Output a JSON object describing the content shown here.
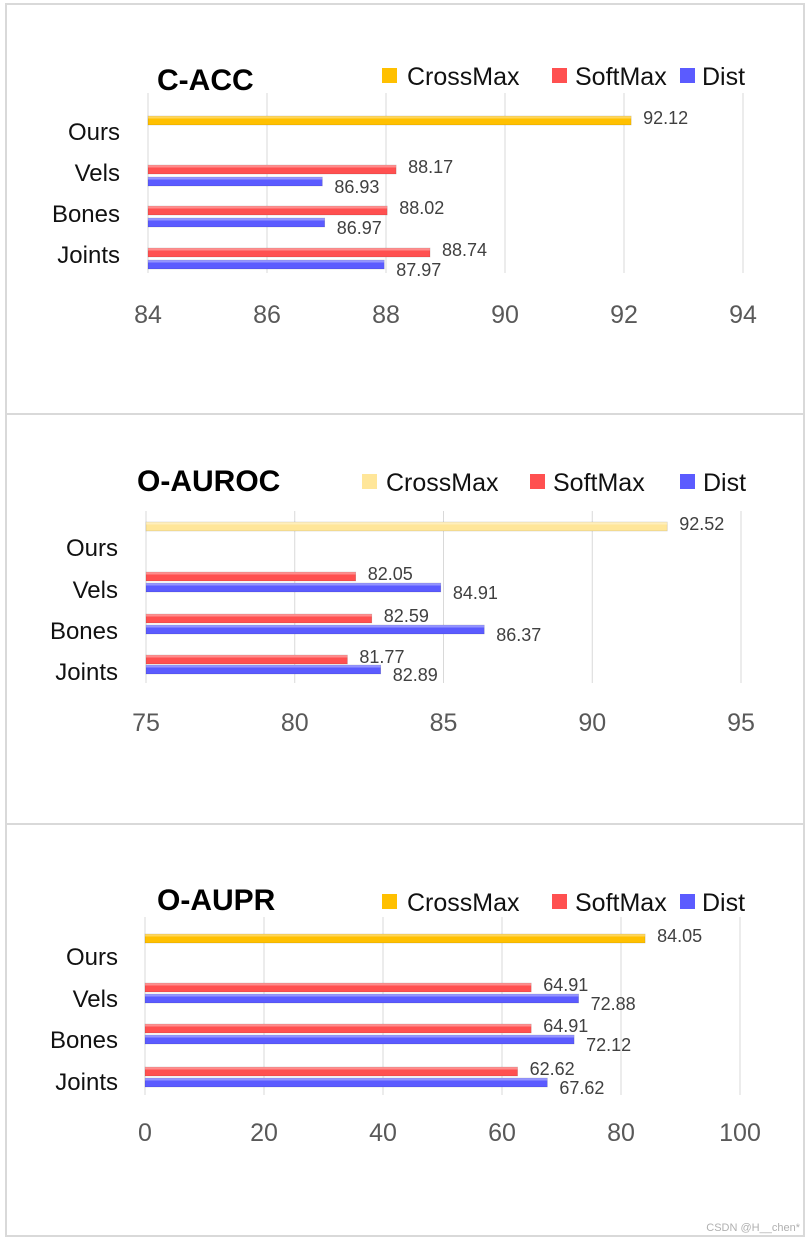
{
  "colors": {
    "crossmax": "#ffc000",
    "crossmax_light": "#ffe699",
    "softmax": "#ff5050",
    "dist": "#5b5bff",
    "grid": "#d9d9d9"
  },
  "watermark": "CSDN @H__chen*",
  "chart_data": [
    {
      "type": "bar",
      "orientation": "horizontal",
      "title": "C-ACC",
      "categories": [
        "Ours",
        "Vels",
        "Bones",
        "Joints"
      ],
      "legend": [
        "CrossMax",
        "SoftMax",
        "Dist"
      ],
      "xlim": [
        84,
        94
      ],
      "ticks": [
        "84",
        "86",
        "88",
        "90",
        "92",
        "94"
      ],
      "series": [
        {
          "name": "CrossMax",
          "values": [
            92.12,
            null,
            null,
            null
          ],
          "labels": [
            "92.12",
            null,
            null,
            null
          ]
        },
        {
          "name": "SoftMax",
          "values": [
            null,
            88.17,
            88.02,
            88.74
          ],
          "labels": [
            null,
            "88.17",
            "88.02",
            "88.74"
          ]
        },
        {
          "name": "Dist",
          "values": [
            null,
            86.93,
            86.97,
            87.97
          ],
          "labels": [
            null,
            "86.93",
            "86.97",
            "87.97"
          ]
        }
      ]
    },
    {
      "type": "bar",
      "orientation": "horizontal",
      "title": "O-AUROC",
      "categories": [
        "Ours",
        "Vels",
        "Bones",
        "Joints"
      ],
      "legend": [
        "CrossMax",
        "SoftMax",
        "Dist"
      ],
      "xlim": [
        75,
        95
      ],
      "ticks": [
        "75",
        "80",
        "85",
        "90",
        "95"
      ],
      "series": [
        {
          "name": "CrossMax",
          "values": [
            92.52,
            null,
            null,
            null
          ],
          "labels": [
            "92.52",
            null,
            null,
            null
          ]
        },
        {
          "name": "SoftMax",
          "values": [
            null,
            82.05,
            82.59,
            81.77
          ],
          "labels": [
            null,
            "82.05",
            "82.59",
            "81.77"
          ]
        },
        {
          "name": "Dist",
          "values": [
            null,
            84.91,
            86.37,
            82.89
          ],
          "labels": [
            null,
            "84.91",
            "86.37",
            "82.89"
          ]
        }
      ]
    },
    {
      "type": "bar",
      "orientation": "horizontal",
      "title": "O-AUPR",
      "categories": [
        "Ours",
        "Vels",
        "Bones",
        "Joints"
      ],
      "legend": [
        "CrossMax",
        "SoftMax",
        "Dist"
      ],
      "xlim": [
        0,
        100
      ],
      "ticks": [
        "0",
        "20",
        "40",
        "60",
        "80",
        "100"
      ],
      "series": [
        {
          "name": "CrossMax",
          "values": [
            84.05,
            null,
            null,
            null
          ],
          "labels": [
            "84.05",
            null,
            null,
            null
          ]
        },
        {
          "name": "SoftMax",
          "values": [
            null,
            64.91,
            64.91,
            62.62
          ],
          "labels": [
            null,
            "64.91",
            "64.91",
            "62.62"
          ]
        },
        {
          "name": "Dist",
          "values": [
            null,
            72.88,
            72.12,
            67.62
          ],
          "labels": [
            null,
            "72.88",
            "72.12",
            "67.62"
          ]
        }
      ]
    }
  ]
}
